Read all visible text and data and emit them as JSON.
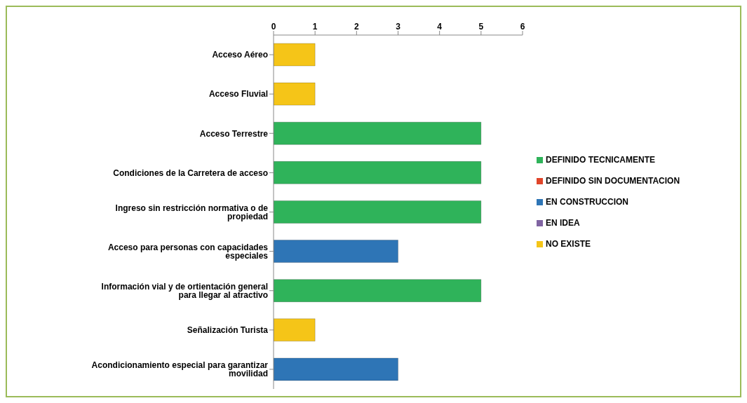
{
  "chart_data": {
    "type": "bar",
    "orientation": "horizontal",
    "stacked": true,
    "categories": [
      "Acceso Aéreo",
      "Acceso Fluvial",
      "Acceso Terrestre",
      "Condiciones de la Carretera de acceso",
      "Ingreso sin restricción normativa o de propiedad",
      "Acceso para personas con capacidades especiales",
      "Información vial y de ortientación general para llegar al atractivo",
      "Señalización Turista",
      "Acondicionamiento especial para garantizar movilidad"
    ],
    "series": [
      {
        "name": "DEFINIDO TECNICAMENTE",
        "color": "#2fb35a",
        "values": [
          null,
          null,
          5,
          5,
          5,
          null,
          5,
          null,
          null
        ]
      },
      {
        "name": "DEFINIDO SIN DOCUMENTACION",
        "color": "#e0452a",
        "values": [
          null,
          null,
          null,
          null,
          null,
          null,
          null,
          null,
          null
        ]
      },
      {
        "name": "EN CONSTRUCCION",
        "color": "#2e75b6",
        "values": [
          null,
          null,
          null,
          null,
          null,
          3,
          null,
          null,
          3
        ]
      },
      {
        "name": "EN IDEA",
        "color": "#8064a2",
        "values": [
          null,
          null,
          null,
          null,
          null,
          null,
          null,
          null,
          null
        ]
      },
      {
        "name": "NO EXISTE",
        "color": "#f5c518",
        "values": [
          1,
          1,
          null,
          null,
          null,
          null,
          null,
          1,
          null
        ]
      }
    ],
    "xlim": [
      0,
      6
    ],
    "xticks": [
      0,
      1,
      2,
      3,
      4,
      5,
      6
    ],
    "grid": false,
    "legend": "right"
  }
}
